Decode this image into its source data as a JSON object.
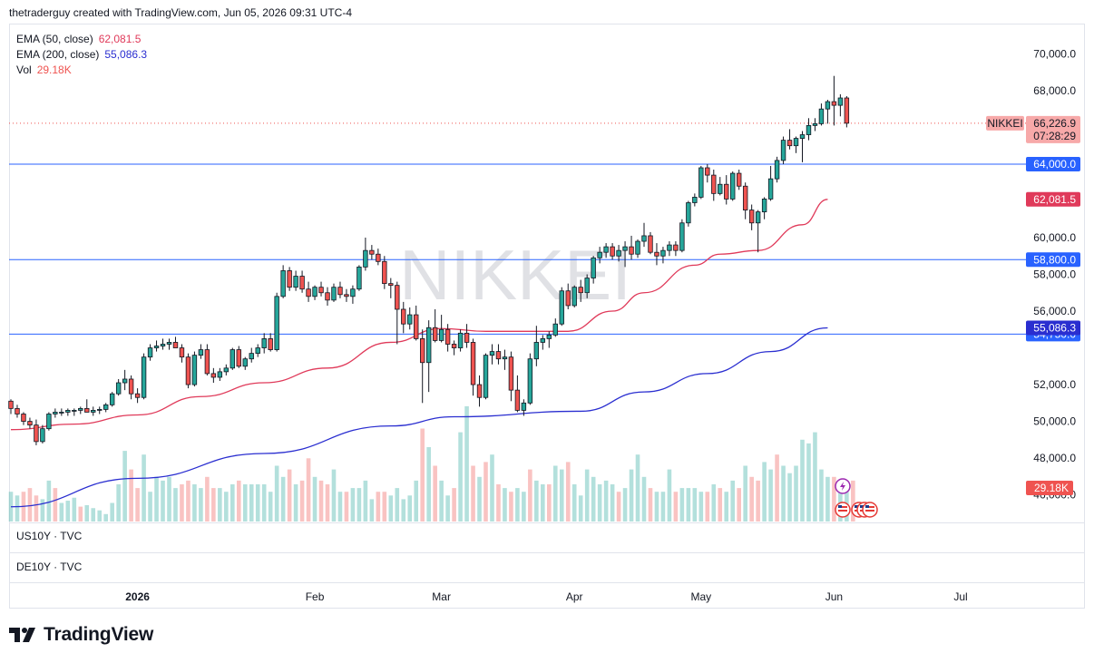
{
  "header": {
    "attribution": "thetraderguy created with TradingView.com, Jun 05, 2026 09:31 UTC-4"
  },
  "indicators": [
    {
      "label": "EMA (50, close)",
      "value": "62,081.5",
      "color": "#e03a5a"
    },
    {
      "label": "EMA (200, close)",
      "value": "55,086.3",
      "color": "#2a2ed0"
    },
    {
      "label": "Vol",
      "value": "29.18K",
      "color": "#ef5350"
    }
  ],
  "watermark": "NIKKEI",
  "panes": {
    "us10y": "US10Y · TVC",
    "de10y": "DE10Y · TVC"
  },
  "brand": {
    "name": "TradingView"
  },
  "colors": {
    "up": "#26a69a",
    "down": "#ef5350",
    "ema50": "#e03a5a",
    "ema200": "#2a2ed0",
    "hline": "#2962ff",
    "grid": "#e0e3eb"
  },
  "chart_data": {
    "type": "candlestick",
    "symbol": "NIKKEI",
    "last_price": "66,226.9",
    "countdown": "07:28:29",
    "ylim": [
      44500,
      71500
    ],
    "yticks": [
      {
        "v": 70000,
        "label": "70,000.0"
      },
      {
        "v": 68000,
        "label": "68,000.0"
      },
      {
        "v": 60000,
        "label": "60,000.0"
      },
      {
        "v": 58000,
        "label": "58,000.0"
      },
      {
        "v": 56000,
        "label": "56,000.0"
      },
      {
        "v": 52000,
        "label": "52,000.0"
      },
      {
        "v": 50000,
        "label": "50,000.0"
      },
      {
        "v": 48000,
        "label": "48,000.0"
      },
      {
        "v": 46000,
        "label": "46,000.0"
      }
    ],
    "horizontal_lines": [
      {
        "v": 64000,
        "label": "64,000.0"
      },
      {
        "v": 58800,
        "label": "58,800.0"
      },
      {
        "v": 54750,
        "label": "54,750.0"
      }
    ],
    "ema_tags": [
      {
        "v": 62081.5,
        "label": "62,081.5",
        "color": "#e03a5a"
      },
      {
        "v": 55086.3,
        "label": "55,086.3",
        "color": "#2a2ed0"
      }
    ],
    "volume_tag": "29.18K",
    "x_months": [
      {
        "i": 20,
        "label": "2026",
        "bold": true
      },
      {
        "i": 48,
        "label": "Feb"
      },
      {
        "i": 68,
        "label": "Mar"
      },
      {
        "i": 89,
        "label": "Apr"
      },
      {
        "i": 109,
        "label": "May"
      },
      {
        "i": 130,
        "label": "Jun"
      },
      {
        "i": 150,
        "label": "Jul"
      }
    ],
    "ema50": [
      [
        0,
        49550
      ],
      [
        10,
        49850
      ],
      [
        20,
        50350
      ],
      [
        30,
        51350
      ],
      [
        40,
        52100
      ],
      [
        50,
        52900
      ],
      [
        60,
        54300
      ],
      [
        68,
        55050
      ],
      [
        75,
        54900
      ],
      [
        80,
        54900
      ],
      [
        88,
        54900
      ],
      [
        95,
        56000
      ],
      [
        100,
        57000
      ],
      [
        108,
        58500
      ],
      [
        112,
        59100
      ],
      [
        118,
        59300
      ],
      [
        125,
        60700
      ],
      [
        129,
        62081.5
      ]
    ],
    "ema200": [
      [
        0,
        45350
      ],
      [
        20,
        46900
      ],
      [
        40,
        48250
      ],
      [
        60,
        49750
      ],
      [
        70,
        50250
      ],
      [
        90,
        50550
      ],
      [
        100,
        51600
      ],
      [
        110,
        52600
      ],
      [
        120,
        53800
      ],
      [
        129,
        55086.3
      ]
    ],
    "candles": [
      [
        51100,
        51200,
        50400,
        50700
      ],
      [
        50700,
        50900,
        50200,
        50400
      ],
      [
        50400,
        50500,
        49800,
        50000
      ],
      [
        50000,
        50200,
        49600,
        49800
      ],
      [
        49800,
        50100,
        48700,
        48900
      ],
      [
        48900,
        49800,
        48800,
        49600
      ],
      [
        49600,
        50500,
        49500,
        50400
      ],
      [
        50400,
        50700,
        50200,
        50500
      ],
      [
        50500,
        50700,
        50300,
        50500
      ],
      [
        50500,
        50700,
        50300,
        50600
      ],
      [
        50600,
        50700,
        50300,
        50600
      ],
      [
        50600,
        50800,
        50400,
        50700
      ],
      [
        50700,
        51200,
        50600,
        50500
      ],
      [
        50500,
        50800,
        50300,
        50600
      ],
      [
        50600,
        50800,
        50400,
        50650
      ],
      [
        50650,
        51000,
        50500,
        50900
      ],
      [
        50900,
        51600,
        50800,
        51500
      ],
      [
        51500,
        52300,
        51400,
        52100
      ],
      [
        52100,
        52800,
        51700,
        52300
      ],
      [
        52300,
        52500,
        51200,
        51500
      ],
      [
        51500,
        51800,
        51000,
        51300
      ],
      [
        51300,
        53700,
        51200,
        53500
      ],
      [
        53500,
        54200,
        53300,
        54000
      ],
      [
        54000,
        54400,
        53800,
        54100
      ],
      [
        54100,
        54500,
        53900,
        54200
      ],
      [
        54200,
        54500,
        53900,
        54300
      ],
      [
        54300,
        54600,
        54000,
        54000
      ],
      [
        54000,
        54200,
        53200,
        53500
      ],
      [
        53500,
        53700,
        51800,
        52000
      ],
      [
        52000,
        53800,
        51900,
        53600
      ],
      [
        53600,
        54200,
        53400,
        53900
      ],
      [
        53900,
        54200,
        52500,
        52600
      ],
      [
        52600,
        52900,
        52100,
        52400
      ],
      [
        52400,
        52900,
        52200,
        52700
      ],
      [
        52700,
        53100,
        52500,
        52900
      ],
      [
        52900,
        54000,
        52800,
        53900
      ],
      [
        53900,
        54100,
        52900,
        53000
      ],
      [
        53000,
        53500,
        52800,
        53400
      ],
      [
        53400,
        54000,
        53200,
        53700
      ],
      [
        53700,
        54200,
        53500,
        54000
      ],
      [
        54000,
        54800,
        53700,
        54500
      ],
      [
        54500,
        54800,
        53800,
        53900
      ],
      [
        53900,
        57000,
        53800,
        56800
      ],
      [
        56800,
        58500,
        56700,
        58200
      ],
      [
        58200,
        58400,
        57100,
        57300
      ],
      [
        57300,
        58200,
        57100,
        57900
      ],
      [
        57900,
        58200,
        57000,
        57200
      ],
      [
        57200,
        57600,
        56500,
        56800
      ],
      [
        56800,
        57400,
        56600,
        57300
      ],
      [
        57300,
        57600,
        56800,
        57000
      ],
      [
        57000,
        57300,
        56300,
        56600
      ],
      [
        56600,
        57500,
        56500,
        57300
      ],
      [
        57300,
        57600,
        56700,
        56900
      ],
      [
        56900,
        57200,
        56500,
        56800
      ],
      [
        56800,
        57400,
        56400,
        57200
      ],
      [
        57200,
        58500,
        57100,
        58400
      ],
      [
        58400,
        60000,
        58200,
        59300
      ],
      [
        59300,
        59600,
        58800,
        59100
      ],
      [
        59100,
        59400,
        58500,
        58700
      ],
      [
        58700,
        59000,
        57200,
        57500
      ],
      [
        57500,
        57800,
        56700,
        57400
      ],
      [
        57400,
        57600,
        54200,
        56100
      ],
      [
        56100,
        56500,
        54800,
        55300
      ],
      [
        55300,
        56200,
        55000,
        55800
      ],
      [
        55800,
        56300,
        54400,
        54500
      ],
      [
        54500,
        55000,
        51000,
        53200
      ],
      [
        53200,
        55500,
        51600,
        55100
      ],
      [
        55100,
        56100,
        54300,
        54400
      ],
      [
        54400,
        55800,
        54300,
        55000
      ],
      [
        55000,
        55300,
        53800,
        54200
      ],
      [
        54200,
        54400,
        53600,
        54000
      ],
      [
        54000,
        55000,
        53800,
        54800
      ],
      [
        54800,
        55300,
        54000,
        54300
      ],
      [
        54300,
        54500,
        51400,
        52000
      ],
      [
        52000,
        52500,
        50800,
        51300
      ],
      [
        51300,
        53700,
        51200,
        53600
      ],
      [
        53600,
        54200,
        53100,
        53800
      ],
      [
        53800,
        54200,
        53100,
        53400
      ],
      [
        53400,
        53900,
        52800,
        53500
      ],
      [
        53500,
        53800,
        51100,
        51700
      ],
      [
        51700,
        52500,
        50500,
        50600
      ],
      [
        50600,
        51200,
        50300,
        51000
      ],
      [
        51000,
        53700,
        50900,
        53400
      ],
      [
        53400,
        55200,
        53000,
        54300
      ],
      [
        54300,
        54700,
        53900,
        54500
      ],
      [
        54500,
        54900,
        54000,
        54700
      ],
      [
        54700,
        55600,
        54600,
        55300
      ],
      [
        55300,
        57300,
        55200,
        57100
      ],
      [
        57100,
        57500,
        56100,
        56300
      ],
      [
        56300,
        57400,
        56200,
        57300
      ],
      [
        57300,
        57700,
        56500,
        57000
      ],
      [
        57000,
        58000,
        56700,
        57800
      ],
      [
        57800,
        59000,
        57500,
        58900
      ],
      [
        58900,
        59500,
        58600,
        59200
      ],
      [
        59200,
        59700,
        58900,
        59500
      ],
      [
        59500,
        59700,
        58800,
        59000
      ],
      [
        59000,
        59600,
        58700,
        59300
      ],
      [
        59300,
        59800,
        58400,
        59500
      ],
      [
        59500,
        60100,
        58800,
        59100
      ],
      [
        59100,
        59900,
        58900,
        59800
      ],
      [
        59800,
        60800,
        59500,
        60100
      ],
      [
        60100,
        60300,
        59100,
        59200
      ],
      [
        59200,
        59700,
        58500,
        59000
      ],
      [
        59000,
        59500,
        58600,
        59300
      ],
      [
        59300,
        59800,
        59000,
        59600
      ],
      [
        59600,
        59800,
        59000,
        59300
      ],
      [
        59300,
        61000,
        59200,
        60800
      ],
      [
        60800,
        62000,
        60600,
        61900
      ],
      [
        61900,
        62400,
        61700,
        62200
      ],
      [
        62200,
        63900,
        62100,
        63800
      ],
      [
        63800,
        64000,
        63000,
        63400
      ],
      [
        63400,
        63700,
        62000,
        62400
      ],
      [
        62400,
        63300,
        62300,
        62900
      ],
      [
        62900,
        63400,
        61800,
        62100
      ],
      [
        62100,
        63600,
        62000,
        63500
      ],
      [
        63500,
        63700,
        62600,
        62800
      ],
      [
        62800,
        63000,
        61000,
        61500
      ],
      [
        61500,
        61800,
        60400,
        60800
      ],
      [
        60800,
        61500,
        59200,
        61400
      ],
      [
        61400,
        62200,
        61000,
        62100
      ],
      [
        62100,
        63900,
        62000,
        63200
      ],
      [
        63200,
        64400,
        63000,
        64200
      ],
      [
        64200,
        65500,
        64000,
        65300
      ],
      [
        65300,
        65900,
        64800,
        65000
      ],
      [
        65000,
        65500,
        64600,
        65400
      ],
      [
        65400,
        65800,
        64100,
        65600
      ],
      [
        65600,
        66500,
        65300,
        66100
      ],
      [
        66100,
        66500,
        65800,
        66200
      ],
      [
        66200,
        67300,
        66100,
        67000
      ],
      [
        67000,
        67500,
        66200,
        67400
      ],
      [
        67400,
        68800,
        66100,
        67200
      ],
      [
        67200,
        67800,
        66600,
        67600
      ],
      [
        67600,
        67700,
        66000,
        66226.9
      ]
    ],
    "volume": [
      [
        0.4,
        1
      ],
      [
        0.35,
        1
      ],
      [
        0.4,
        0
      ],
      [
        0.45,
        0
      ],
      [
        0.35,
        0
      ],
      [
        0.3,
        1
      ],
      [
        0.55,
        1
      ],
      [
        0.45,
        0
      ],
      [
        0.25,
        1
      ],
      [
        0.28,
        1
      ],
      [
        0.32,
        1
      ],
      [
        0.2,
        0
      ],
      [
        0.22,
        1
      ],
      [
        0.18,
        1
      ],
      [
        0.15,
        1
      ],
      [
        0.1,
        1
      ],
      [
        0.25,
        1
      ],
      [
        0.5,
        1
      ],
      [
        0.95,
        1
      ],
      [
        0.7,
        0
      ],
      [
        0.45,
        0
      ],
      [
        0.9,
        1
      ],
      [
        0.4,
        1
      ],
      [
        0.6,
        1
      ],
      [
        0.55,
        1
      ],
      [
        0.6,
        1
      ],
      [
        0.45,
        1
      ],
      [
        0.5,
        0
      ],
      [
        0.55,
        0
      ],
      [
        0.5,
        1
      ],
      [
        0.45,
        1
      ],
      [
        0.6,
        0
      ],
      [
        0.45,
        0
      ],
      [
        0.45,
        1
      ],
      [
        0.4,
        1
      ],
      [
        0.5,
        1
      ],
      [
        0.55,
        0
      ],
      [
        0.5,
        1
      ],
      [
        0.5,
        1
      ],
      [
        0.5,
        1
      ],
      [
        0.5,
        1
      ],
      [
        0.4,
        1
      ],
      [
        0.75,
        1
      ],
      [
        0.6,
        1
      ],
      [
        0.7,
        0
      ],
      [
        0.5,
        1
      ],
      [
        0.55,
        0
      ],
      [
        0.85,
        0
      ],
      [
        0.6,
        1
      ],
      [
        0.55,
        0
      ],
      [
        0.5,
        0
      ],
      [
        0.7,
        1
      ],
      [
        0.4,
        1
      ],
      [
        0.4,
        0
      ],
      [
        0.45,
        1
      ],
      [
        0.45,
        1
      ],
      [
        0.55,
        1
      ],
      [
        0.3,
        1
      ],
      [
        0.4,
        0
      ],
      [
        0.4,
        0
      ],
      [
        0.35,
        1
      ],
      [
        0.45,
        1
      ],
      [
        0.3,
        1
      ],
      [
        0.35,
        1
      ],
      [
        0.55,
        1
      ],
      [
        1.25,
        0
      ],
      [
        1.0,
        1
      ],
      [
        0.75,
        0
      ],
      [
        0.55,
        1
      ],
      [
        0.35,
        1
      ],
      [
        0.45,
        0
      ],
      [
        1.2,
        1
      ],
      [
        1.55,
        1
      ],
      [
        0.75,
        0
      ],
      [
        0.6,
        1
      ],
      [
        0.8,
        0
      ],
      [
        0.9,
        1
      ],
      [
        0.5,
        0
      ],
      [
        0.45,
        1
      ],
      [
        0.4,
        0
      ],
      [
        0.45,
        1
      ],
      [
        0.4,
        1
      ],
      [
        0.7,
        0
      ],
      [
        0.55,
        1
      ],
      [
        0.5,
        1
      ],
      [
        0.5,
        0
      ],
      [
        0.75,
        1
      ],
      [
        0.7,
        1
      ],
      [
        0.8,
        0
      ],
      [
        0.5,
        1
      ],
      [
        0.35,
        1
      ],
      [
        0.7,
        1
      ],
      [
        0.6,
        1
      ],
      [
        0.5,
        1
      ],
      [
        0.55,
        1
      ],
      [
        0.5,
        1
      ],
      [
        0.4,
        0
      ],
      [
        0.45,
        1
      ],
      [
        0.7,
        1
      ],
      [
        0.9,
        1
      ],
      [
        0.6,
        1
      ],
      [
        0.45,
        0
      ],
      [
        0.4,
        1
      ],
      [
        0.4,
        1
      ],
      [
        0.7,
        1
      ],
      [
        0.4,
        0
      ],
      [
        0.45,
        1
      ],
      [
        0.45,
        1
      ],
      [
        0.45,
        1
      ],
      [
        0.4,
        1
      ],
      [
        0.4,
        0
      ],
      [
        0.5,
        1
      ],
      [
        0.45,
        0
      ],
      [
        0.4,
        1
      ],
      [
        0.55,
        1
      ],
      [
        0.45,
        0
      ],
      [
        0.75,
        1
      ],
      [
        0.6,
        0
      ],
      [
        0.55,
        0
      ],
      [
        0.8,
        1
      ],
      [
        0.7,
        1
      ],
      [
        0.9,
        0
      ],
      [
        0.75,
        1
      ],
      [
        0.65,
        1
      ],
      [
        0.75,
        1
      ],
      [
        1.1,
        1
      ],
      [
        1.05,
        1
      ],
      [
        1.2,
        1
      ],
      [
        0.7,
        1
      ],
      [
        0.6,
        1
      ],
      [
        0.6,
        0
      ],
      [
        0.55,
        1
      ],
      [
        0.55,
        1
      ],
      [
        0.55,
        0
      ]
    ]
  }
}
